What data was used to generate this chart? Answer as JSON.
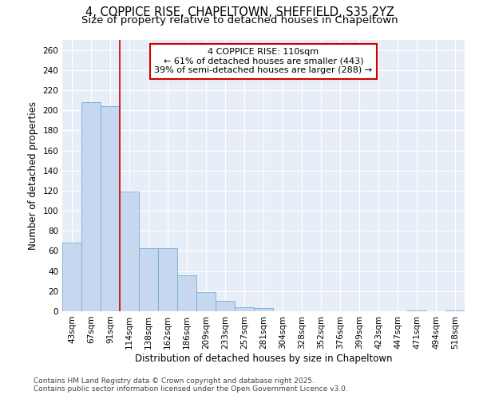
{
  "title_line1": "4, COPPICE RISE, CHAPELTOWN, SHEFFIELD, S35 2YZ",
  "title_line2": "Size of property relative to detached houses in Chapeltown",
  "xlabel": "Distribution of detached houses by size in Chapeltown",
  "ylabel": "Number of detached properties",
  "categories": [
    "43sqm",
    "67sqm",
    "91sqm",
    "114sqm",
    "138sqm",
    "162sqm",
    "186sqm",
    "209sqm",
    "233sqm",
    "257sqm",
    "281sqm",
    "304sqm",
    "328sqm",
    "352sqm",
    "376sqm",
    "399sqm",
    "423sqm",
    "447sqm",
    "471sqm",
    "494sqm",
    "518sqm"
  ],
  "values": [
    68,
    208,
    204,
    119,
    63,
    63,
    36,
    19,
    10,
    4,
    3,
    0,
    0,
    0,
    0,
    0,
    0,
    0,
    1,
    0,
    1
  ],
  "bar_color": "#c5d8f0",
  "bar_edge_color": "#7aaad4",
  "vline_color": "#cc0000",
  "annotation_text": "4 COPPICE RISE: 110sqm\n← 61% of detached houses are smaller (443)\n39% of semi-detached houses are larger (288) →",
  "annotation_box_color": "#ffffff",
  "annotation_box_edgecolor": "#cc0000",
  "ylim": [
    0,
    270
  ],
  "yticks": [
    0,
    20,
    40,
    60,
    80,
    100,
    120,
    140,
    160,
    180,
    200,
    220,
    240,
    260
  ],
  "bg_color": "#e8eef8",
  "footer_line1": "Contains HM Land Registry data © Crown copyright and database right 2025.",
  "footer_line2": "Contains public sector information licensed under the Open Government Licence v3.0.",
  "title_fontsize": 10.5,
  "subtitle_fontsize": 9.5,
  "axis_label_fontsize": 8.5,
  "tick_fontsize": 7.5,
  "annotation_fontsize": 8,
  "footer_fontsize": 6.5
}
